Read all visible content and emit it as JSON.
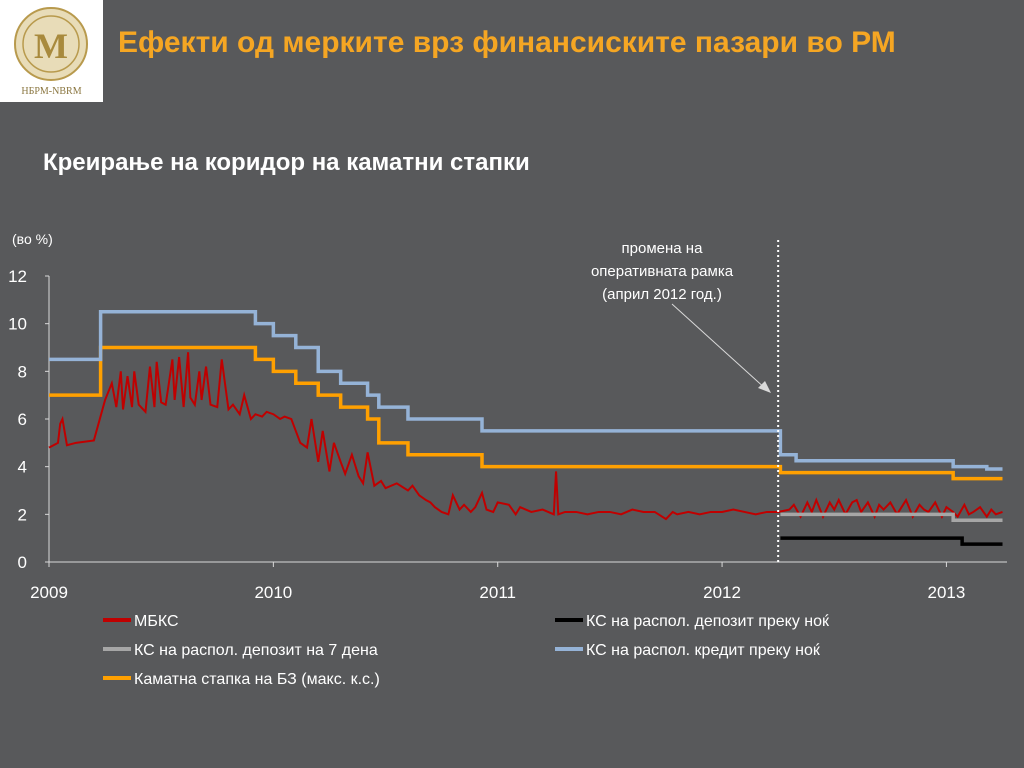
{
  "slide": {
    "title": "Ефекти од мерките врз финансиските пазари во РМ",
    "subtitle": "Креирање на коридор на каматни стапки",
    "logo_text": "НБРМ-NBRM"
  },
  "chart_data": {
    "type": "line",
    "unit_label": "(во %)",
    "annotation": [
      "промена на",
      "оперативната рамка",
      "(април 2012 год.)"
    ],
    "annotation_date": 2012.25,
    "xlim": [
      2009,
      2013.27
    ],
    "ylim": [
      0,
      12
    ],
    "x_ticks": [
      2009,
      2010,
      2011,
      2012,
      2013
    ],
    "x_tick_labels": [
      "2009",
      "2010",
      "2011",
      "2012",
      "2013"
    ],
    "y_ticks": [
      0,
      2,
      4,
      6,
      8,
      10,
      12
    ],
    "y_tick_labels": [
      "0",
      "2",
      "4",
      "6",
      "8",
      "10",
      "12"
    ],
    "series": [
      {
        "name": "МБКС",
        "color": "#c00000",
        "step": false,
        "x": [
          2009.0,
          2009.02,
          2009.04,
          2009.05,
          2009.06,
          2009.08,
          2009.12,
          2009.2,
          2009.25,
          2009.28,
          2009.3,
          2009.32,
          2009.33,
          2009.35,
          2009.37,
          2009.38,
          2009.4,
          2009.43,
          2009.45,
          2009.47,
          2009.48,
          2009.5,
          2009.52,
          2009.55,
          2009.56,
          2009.58,
          2009.6,
          2009.62,
          2009.63,
          2009.65,
          2009.67,
          2009.68,
          2009.7,
          2009.72,
          2009.75,
          2009.77,
          2009.8,
          2009.82,
          2009.85,
          2009.87,
          2009.9,
          2009.92,
          2009.95,
          2009.97,
          2010.0,
          2010.03,
          2010.05,
          2010.08,
          2010.1,
          2010.12,
          2010.15,
          2010.17,
          2010.2,
          2010.22,
          2010.25,
          2010.27,
          2010.3,
          2010.32,
          2010.35,
          2010.38,
          2010.4,
          2010.42,
          2010.45,
          2010.48,
          2010.5,
          2010.55,
          2010.6,
          2010.62,
          2010.65,
          2010.68,
          2010.7,
          2010.72,
          2010.75,
          2010.78,
          2010.8,
          2010.83,
          2010.85,
          2010.88,
          2010.9,
          2010.93,
          2010.95,
          2010.98,
          2011.0,
          2011.05,
          2011.08,
          2011.1,
          2011.15,
          2011.2,
          2011.25,
          2011.26,
          2011.27,
          2011.3,
          2011.35,
          2011.4,
          2011.45,
          2011.5,
          2011.55,
          2011.6,
          2011.65,
          2011.7,
          2011.75,
          2011.78,
          2011.8,
          2011.85,
          2011.9,
          2011.95,
          2012.0,
          2012.05,
          2012.1,
          2012.15,
          2012.2,
          2012.25,
          2012.3,
          2012.32,
          2012.35,
          2012.38,
          2012.4,
          2012.42,
          2012.45,
          2012.48,
          2012.5,
          2012.52,
          2012.55,
          2012.58,
          2012.6,
          2012.62,
          2012.65,
          2012.68,
          2012.7,
          2012.72,
          2012.75,
          2012.78,
          2012.8,
          2012.82,
          2012.85,
          2012.88,
          2012.9,
          2012.92,
          2012.95,
          2012.98,
          2013.0,
          2013.03,
          2013.05,
          2013.08,
          2013.1,
          2013.12,
          2013.15,
          2013.18,
          2013.2,
          2013.22,
          2013.25
        ],
        "values": [
          4.8,
          4.9,
          5.0,
          5.8,
          6.0,
          4.9,
          5.0,
          5.1,
          6.8,
          7.5,
          6.5,
          8.0,
          6.4,
          7.8,
          6.5,
          8.0,
          6.6,
          6.3,
          8.2,
          6.5,
          8.4,
          6.7,
          6.6,
          8.5,
          6.8,
          8.6,
          6.5,
          8.8,
          6.9,
          6.6,
          8.0,
          6.8,
          8.2,
          6.6,
          6.5,
          8.5,
          6.4,
          6.6,
          6.2,
          7.0,
          6.0,
          6.2,
          6.1,
          6.3,
          6.2,
          6.0,
          6.1,
          6.0,
          5.5,
          5.0,
          4.8,
          6.0,
          4.2,
          5.5,
          3.8,
          5.0,
          4.2,
          3.7,
          4.5,
          3.6,
          3.3,
          4.6,
          3.2,
          3.4,
          3.1,
          3.3,
          3.0,
          3.2,
          2.8,
          2.6,
          2.5,
          2.3,
          2.1,
          2.0,
          2.8,
          2.2,
          2.4,
          2.1,
          2.3,
          2.9,
          2.2,
          2.1,
          2.5,
          2.4,
          2.0,
          2.3,
          2.1,
          2.2,
          2.0,
          3.8,
          2.0,
          2.1,
          2.1,
          2.0,
          2.1,
          2.1,
          2.0,
          2.2,
          2.1,
          2.1,
          1.8,
          2.1,
          2.0,
          2.1,
          2.0,
          2.1,
          2.1,
          2.2,
          2.1,
          2.0,
          2.1,
          2.1,
          2.2,
          2.4,
          1.9,
          2.5,
          2.1,
          2.6,
          1.9,
          2.5,
          2.2,
          2.6,
          2.0,
          2.5,
          2.6,
          2.1,
          2.5,
          1.9,
          2.4,
          2.2,
          2.5,
          2.0,
          2.3,
          2.6,
          1.9,
          2.4,
          2.2,
          2.1,
          2.5,
          1.9,
          2.3,
          2.1,
          1.9,
          2.4,
          2.0,
          2.1,
          2.3,
          1.9,
          2.2,
          2.0,
          2.1
        ]
      },
      {
        "name": "КС на распол. депозит на 7 дена",
        "color": "#a6a6a6",
        "step": true,
        "x": [
          2012.26,
          2013.03,
          2013.25
        ],
        "values": [
          2.0,
          1.75,
          1.75
        ]
      },
      {
        "name": "Каматна стапка на БЗ (макс. к.с.)",
        "color": "#ffa000",
        "step": true,
        "x": [
          2009.0,
          2009.23,
          2009.92,
          2010.0,
          2010.1,
          2010.2,
          2010.3,
          2010.42,
          2010.47,
          2010.6,
          2010.93,
          2012.26,
          2012.33,
          2013.03,
          2013.25
        ],
        "values": [
          7.0,
          9.0,
          8.5,
          8.0,
          7.5,
          7.0,
          6.5,
          6.0,
          5.0,
          4.5,
          4.0,
          3.75,
          3.75,
          3.5,
          3.5
        ]
      },
      {
        "name": "КС на распол. депозит преку ноќ",
        "color": "#000000",
        "step": true,
        "x": [
          2012.26,
          2013.07,
          2013.25
        ],
        "values": [
          1.0,
          0.75,
          0.75
        ]
      },
      {
        "name": "КС на распол. кредит преку ноќ",
        "color": "#95b3d7",
        "step": true,
        "x": [
          2009.0,
          2009.23,
          2009.92,
          2010.0,
          2010.1,
          2010.2,
          2010.3,
          2010.42,
          2010.47,
          2010.6,
          2010.93,
          2012.26,
          2012.33,
          2012.42,
          2013.03,
          2013.18,
          2013.25
        ],
        "values": [
          8.5,
          10.5,
          10.0,
          9.5,
          9.0,
          8.0,
          7.5,
          7.0,
          6.5,
          6.0,
          5.5,
          4.5,
          4.25,
          4.25,
          4.0,
          3.9,
          3.9
        ]
      }
    ],
    "legend": {
      "placement": "bottom",
      "columns": [
        [
          "МБКС",
          "КС на распол. депозит на 7 дена",
          "Каматна стапка на БЗ (макс. к.с.)"
        ],
        [
          "КС на распол. депозит преку ноќ",
          "КС на распол. кредит преку ноќ"
        ]
      ]
    }
  }
}
